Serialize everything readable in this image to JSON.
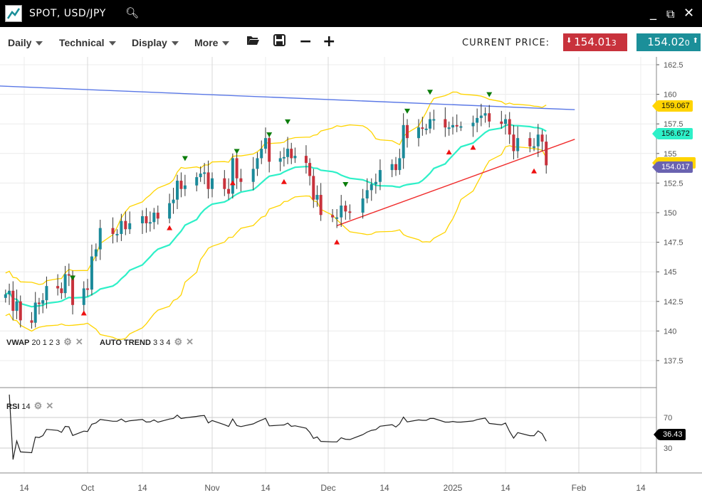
{
  "window": {
    "title": "SPOT, USD/JPY",
    "icons": [
      "chart-logo-icon",
      "search-icon",
      "minimize-icon",
      "popout-icon",
      "close-icon"
    ]
  },
  "toolbar": {
    "menus": [
      "Daily",
      "Technical",
      "Display",
      "More"
    ],
    "tools": [
      "folder-open-icon",
      "save-icon",
      "zoom-out-icon",
      "zoom-in-icon"
    ],
    "current_price_label": "CURRENT PRICE:",
    "bid": {
      "main": "154.01",
      "pip": "3",
      "color": "#c8323c",
      "arrow": "down"
    },
    "ask": {
      "main": "154.02",
      "pip": "0",
      "color": "#1b8f99",
      "arrow": "up"
    }
  },
  "indicators": {
    "vwap": {
      "name": "VWAP",
      "params": "20 1 2 3"
    },
    "auto_trend": {
      "name": "AUTO TREND",
      "params": "3 3 4"
    },
    "rsi": {
      "name": "RSI",
      "params": "14"
    }
  },
  "price_tags": {
    "upper_band": {
      "value": "159.067",
      "color": "#ffd400"
    },
    "middle_band": {
      "value": "156.672",
      "color": "#2ef0c8"
    },
    "last": {
      "value": "154.017",
      "color": "#6a63b0"
    },
    "rsi": {
      "value": "36.43",
      "color": "#000000"
    }
  },
  "chart_data": {
    "type": "candlestick",
    "y_ticks": [
      "162.5",
      "160",
      "157.5",
      "155",
      "152.5",
      "150",
      "147.5",
      "145",
      "142.5",
      "140",
      "137.5"
    ],
    "ylim": [
      136,
      163.5
    ],
    "x_ticks": [
      {
        "date": "2024-09-14",
        "label": "14"
      },
      {
        "date": "2024-10-01",
        "label": "Oct"
      },
      {
        "date": "2024-10-14",
        "label": "14"
      },
      {
        "date": "2024-11-01",
        "label": "Nov"
      },
      {
        "date": "2024-11-14",
        "label": "14"
      },
      {
        "date": "2024-12-01",
        "label": "Dec"
      },
      {
        "date": "2024-12-14",
        "label": "14"
      },
      {
        "date": "2025-01-01",
        "label": "2025"
      },
      {
        "date": "2025-01-14",
        "label": "14"
      },
      {
        "date": "2025-02-01",
        "label": "Feb"
      },
      {
        "date": "2025-02-14",
        "label": "14"
      }
    ],
    "dates": [
      "2024-09-09",
      "2024-09-10",
      "2024-09-11",
      "2024-09-12",
      "2024-09-13",
      "2024-09-16",
      "2024-09-17",
      "2024-09-18",
      "2024-09-19",
      "2024-09-20",
      "2024-09-23",
      "2024-09-24",
      "2024-09-25",
      "2024-09-26",
      "2024-09-27",
      "2024-09-30",
      "2024-10-01",
      "2024-10-02",
      "2024-10-03",
      "2024-10-04",
      "2024-10-07",
      "2024-10-08",
      "2024-10-09",
      "2024-10-10",
      "2024-10-11",
      "2024-10-14",
      "2024-10-15",
      "2024-10-16",
      "2024-10-17",
      "2024-10-18",
      "2024-10-21",
      "2024-10-22",
      "2024-10-23",
      "2024-10-24",
      "2024-10-25",
      "2024-10-28",
      "2024-10-29",
      "2024-10-30",
      "2024-10-31",
      "2024-11-01",
      "2024-11-04",
      "2024-11-05",
      "2024-11-06",
      "2024-11-07",
      "2024-11-08",
      "2024-11-11",
      "2024-11-12",
      "2024-11-13",
      "2024-11-14",
      "2024-11-15",
      "2024-11-18",
      "2024-11-19",
      "2024-11-20",
      "2024-11-21",
      "2024-11-22",
      "2024-11-25",
      "2024-11-26",
      "2024-11-27",
      "2024-11-28",
      "2024-11-29",
      "2024-12-02",
      "2024-12-03",
      "2024-12-04",
      "2024-12-05",
      "2024-12-06",
      "2024-12-09",
      "2024-12-10",
      "2024-12-11",
      "2024-12-12",
      "2024-12-13",
      "2024-12-16",
      "2024-12-17",
      "2024-12-18",
      "2024-12-19",
      "2024-12-20",
      "2024-12-23",
      "2024-12-24",
      "2024-12-25",
      "2024-12-26",
      "2024-12-27",
      "2024-12-30",
      "2024-12-31",
      "2025-01-01",
      "2025-01-02",
      "2025-01-03",
      "2025-01-06",
      "2025-01-07",
      "2025-01-08",
      "2025-01-09",
      "2025-01-10",
      "2025-01-13",
      "2025-01-14",
      "2025-01-15",
      "2025-01-16",
      "2025-01-17",
      "2025-01-20",
      "2025-01-21",
      "2025-01-22",
      "2025-01-23",
      "2025-01-24"
    ],
    "close": [
      143.1,
      143.4,
      141.7,
      142.5,
      140.9,
      140.7,
      142.4,
      142.3,
      142.6,
      143.8,
      143.6,
      143.2,
      144.8,
      144.7,
      142.2,
      143.6,
      143.5,
      146.3,
      146.9,
      148.7,
      148.2,
      148.2,
      149.3,
      148.6,
      149.1,
      149.7,
      149.1,
      149.2,
      150.0,
      149.5,
      150.8,
      151.1,
      152.7,
      152.0,
      152.3,
      153.0,
      153.3,
      153.4,
      152.0,
      152.9,
      152.0,
      151.6,
      154.6,
      152.9,
      152.6,
      153.7,
      154.6,
      155.4,
      156.3,
      154.3,
      154.6,
      154.7,
      155.4,
      154.6,
      154.8,
      154.2,
      153.1,
      151.1,
      151.5,
      149.8,
      149.6,
      149.6,
      150.6,
      150.1,
      150.0,
      151.2,
      151.9,
      152.4,
      152.6,
      153.6,
      154.1,
      153.6,
      154.6,
      157.4,
      156.3,
      157.2,
      157.1,
      157.1,
      157.9,
      157.9,
      157.2,
      157.2,
      157.4,
      157.3,
      157.3,
      157.6,
      158.0,
      158.2,
      158.4,
      157.7,
      157.5,
      157.9,
      156.6,
      155.2,
      156.3,
      155.6,
      155.6,
      156.6,
      156.0,
      154.0
    ],
    "peak_markers": [
      "2024-09-27",
      "2024-10-25",
      "2024-11-07",
      "2024-11-15",
      "2024-11-20",
      "2024-12-05",
      "2024-12-20",
      "2024-12-26",
      "2025-01-10"
    ],
    "trough_markers": [
      "2024-09-30",
      "2024-10-21",
      "2024-11-06",
      "2024-11-19",
      "2024-12-03",
      "2024-12-31",
      "2025-01-06",
      "2025-01-21"
    ],
    "trendlines": [
      {
        "color": "#5a78e6",
        "from": {
          "date": "2024-08-31",
          "value": 160.8
        },
        "to": {
          "date": "2025-01-31",
          "value": 158.7
        }
      },
      {
        "color": "#f02c2c",
        "from": {
          "date": "2024-12-03",
          "value": 148.9
        },
        "to": {
          "date": "2025-01-31",
          "value": 156.2
        }
      }
    ],
    "rsi": {
      "ticks": [
        "70",
        "30"
      ],
      "ylim": [
        0,
        100
      ]
    },
    "colors": {
      "up": "#1b8a9a",
      "down": "#c8323c",
      "band": "#ffd400",
      "middle": "#2ef0c8"
    }
  }
}
